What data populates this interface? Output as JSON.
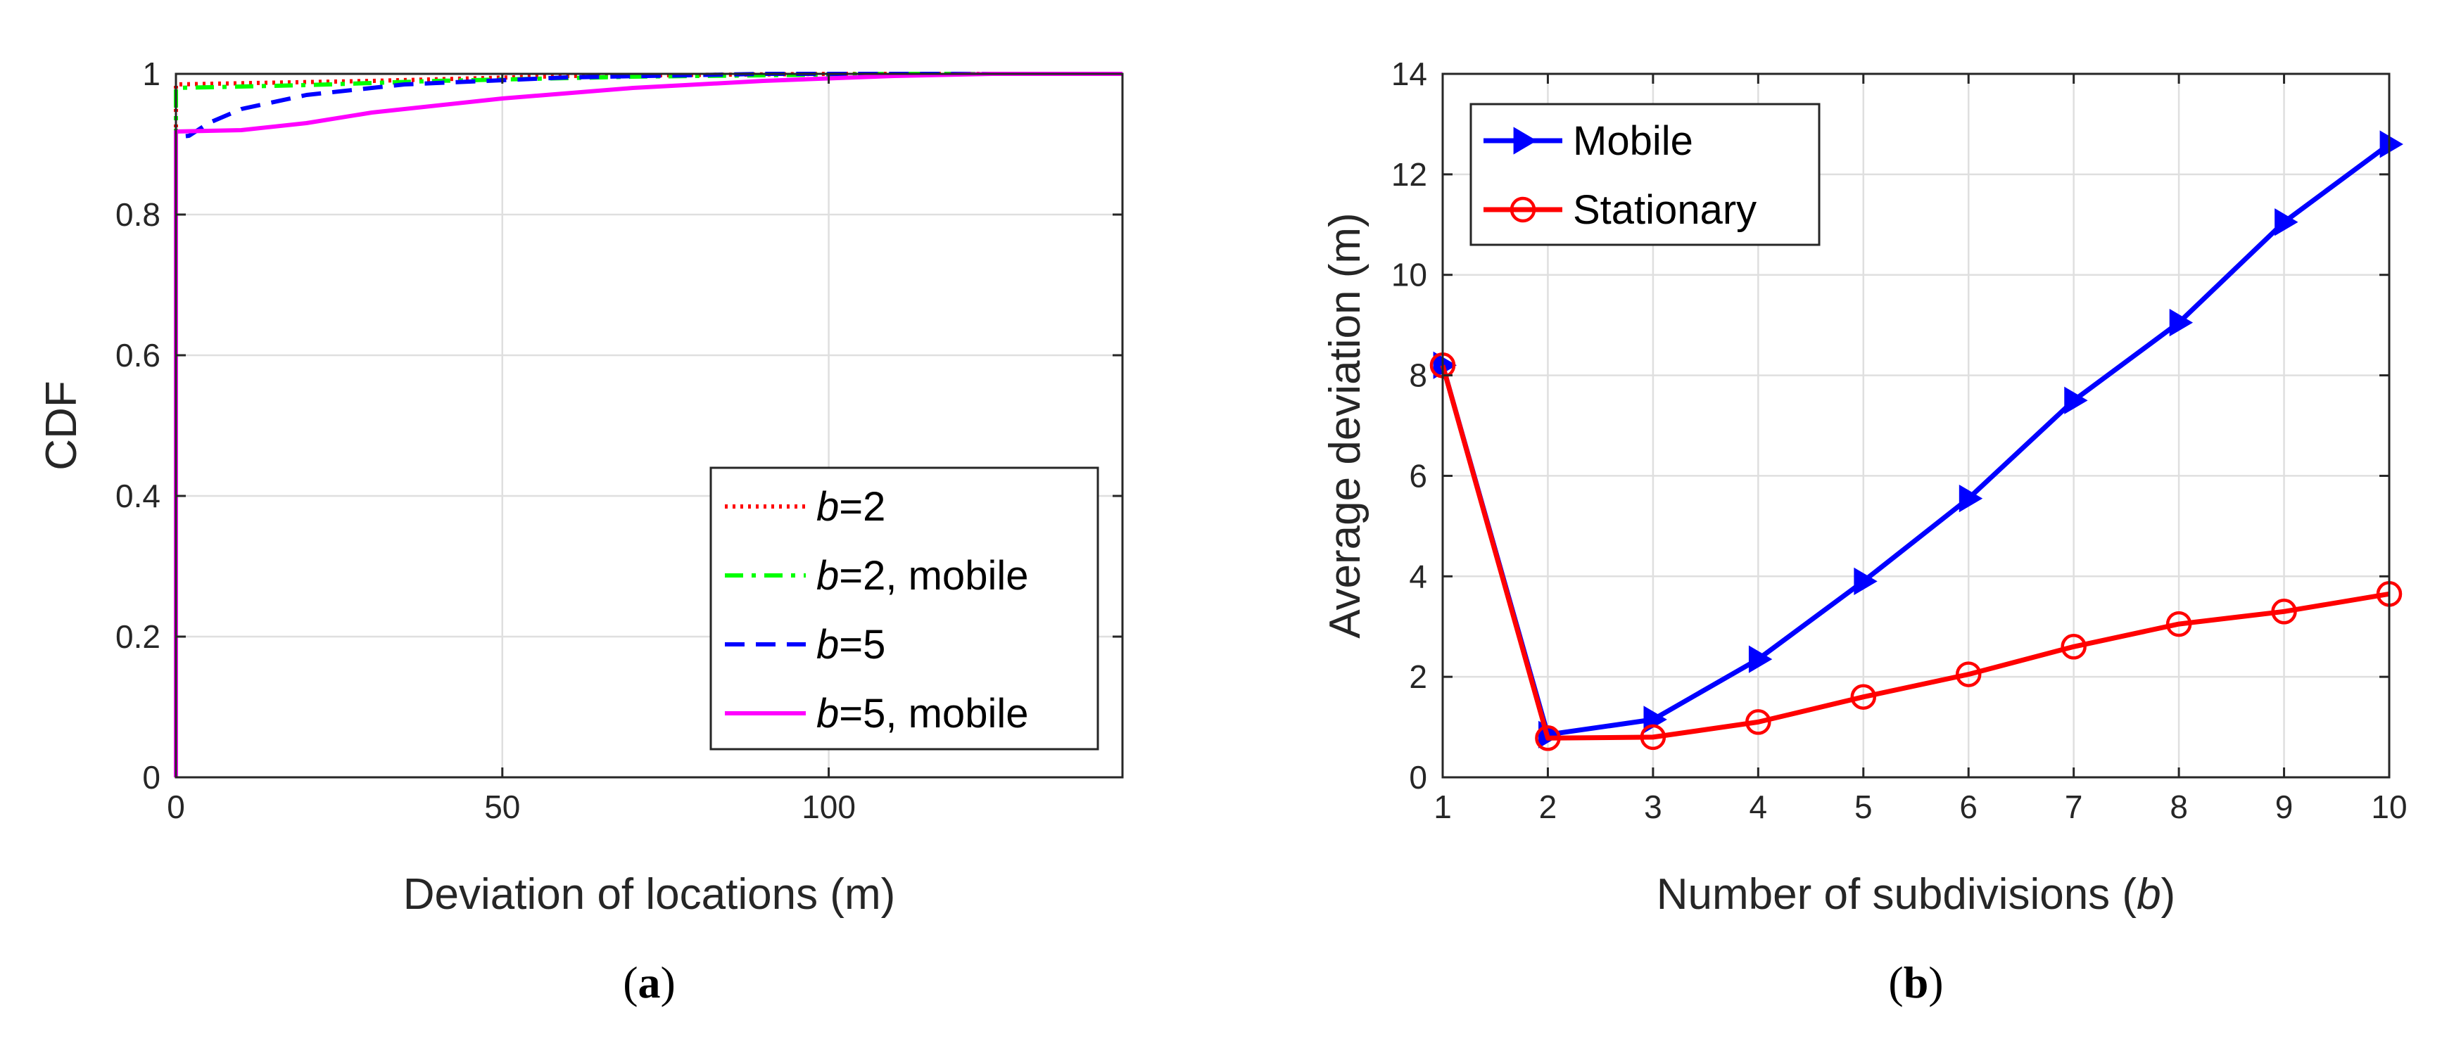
{
  "chart_data": [
    {
      "type": "line",
      "panel_label": "a",
      "xlabel": "Deviation of locations (m)",
      "ylabel": "CDF",
      "xlim": [
        0,
        145
      ],
      "ylim": [
        0,
        1
      ],
      "xticks": [
        0,
        50,
        100
      ],
      "yticks": [
        0,
        0.2,
        0.4,
        0.6,
        0.8,
        1
      ],
      "grid": true,
      "legend_position": "bottom-right",
      "series": [
        {
          "legend_var": "b",
          "legend_rest": "=2",
          "color": "#ff0000",
          "style": "dotted",
          "points": [
            [
              0,
              0
            ],
            [
              0,
              0.985
            ],
            [
              30,
              0.99
            ],
            [
              60,
              0.997
            ],
            [
              100,
              1
            ],
            [
              145,
              1
            ]
          ]
        },
        {
          "legend_var": "b",
          "legend_rest": "=2, mobile",
          "color": "#00ff00",
          "style": "dashdot",
          "points": [
            [
              0,
              0
            ],
            [
              0,
              0.98
            ],
            [
              10,
              0.982
            ],
            [
              20,
              0.984
            ],
            [
              40,
              0.99
            ],
            [
              70,
              0.996
            ],
            [
              110,
              1
            ],
            [
              145,
              1
            ]
          ]
        },
        {
          "legend_var": "b",
          "legend_rest": "=5",
          "color": "#0000ff",
          "style": "dashed",
          "points": [
            [
              0,
              0
            ],
            [
              0,
              0.91
            ],
            [
              2,
              0.912
            ],
            [
              5,
              0.93
            ],
            [
              10,
              0.95
            ],
            [
              20,
              0.97
            ],
            [
              35,
              0.985
            ],
            [
              60,
              0.995
            ],
            [
              90,
              1
            ],
            [
              145,
              1
            ]
          ]
        },
        {
          "legend_var": "b",
          "legend_rest": "=5, mobile",
          "color": "#ff00ff",
          "style": "solid",
          "points": [
            [
              0,
              0
            ],
            [
              0,
              0.918
            ],
            [
              10,
              0.92
            ],
            [
              20,
              0.93
            ],
            [
              30,
              0.945
            ],
            [
              50,
              0.965
            ],
            [
              70,
              0.98
            ],
            [
              90,
              0.99
            ],
            [
              110,
              0.997
            ],
            [
              125,
              1
            ],
            [
              145,
              1
            ]
          ]
        }
      ]
    },
    {
      "type": "line",
      "panel_label": "b",
      "xlabel_pre": "Number of subdivisions (",
      "xlabel_var": "b",
      "xlabel_post": ")",
      "ylabel": "Average deviation (m)",
      "xlim": [
        1,
        10
      ],
      "ylim": [
        0,
        14
      ],
      "xticks": [
        1,
        2,
        3,
        4,
        5,
        6,
        7,
        8,
        9,
        10
      ],
      "yticks": [
        0,
        2,
        4,
        6,
        8,
        10,
        12,
        14
      ],
      "grid": true,
      "legend_position": "top-left",
      "x": [
        1,
        2,
        3,
        4,
        5,
        6,
        7,
        8,
        9,
        10
      ],
      "series": [
        {
          "name": "Mobile",
          "color": "#0000ff",
          "marker": "triangle-right",
          "values": [
            8.2,
            0.85,
            1.15,
            2.35,
            3.9,
            5.55,
            7.5,
            9.05,
            11.05,
            12.6
          ]
        },
        {
          "name": "Stationary",
          "color": "#ff0000",
          "marker": "circle",
          "values": [
            8.2,
            0.78,
            0.8,
            1.1,
            1.6,
            2.05,
            2.6,
            3.05,
            3.3,
            3.65
          ]
        }
      ]
    }
  ]
}
